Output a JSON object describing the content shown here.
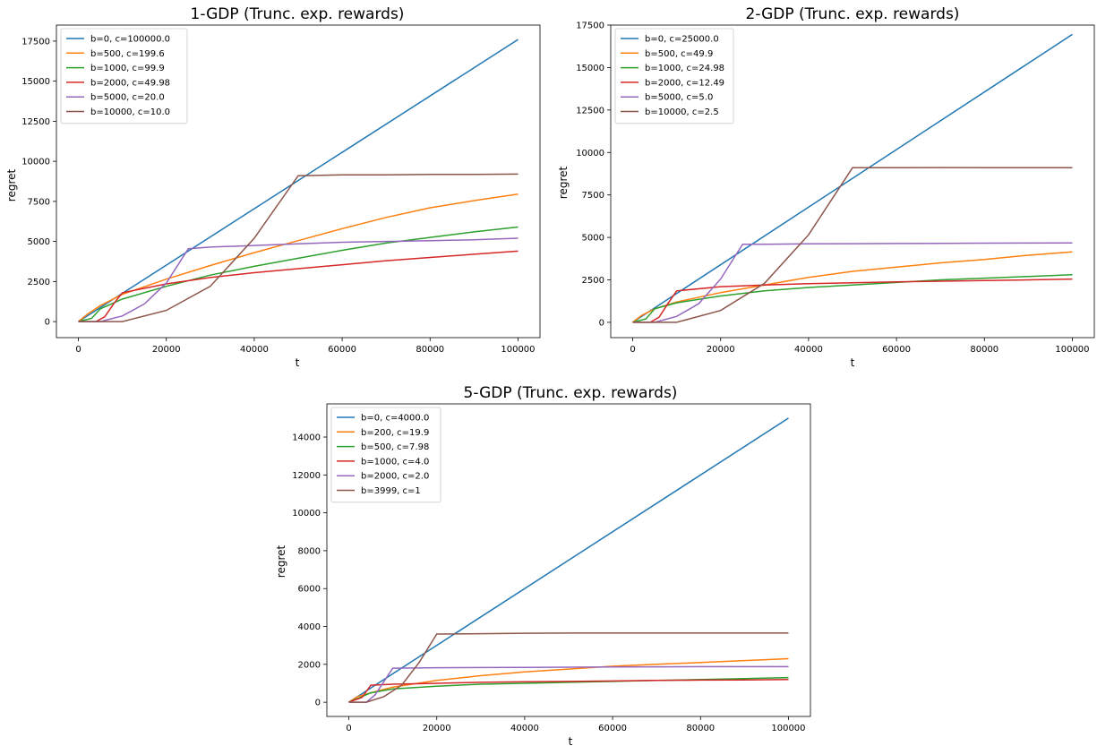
{
  "colors": {
    "series": [
      "#1f77b4",
      "#ff7f0e",
      "#2ca02c",
      "#d62728",
      "#9467bd",
      "#8c564b"
    ]
  },
  "chart_data": [
    {
      "type": "line",
      "title": "1-GDP (Trunc. exp. rewards)",
      "xlabel": "t",
      "ylabel": "regret",
      "xlim": [
        -5000,
        105000
      ],
      "ylim": [
        -1000,
        18500
      ],
      "xticks": [
        0,
        20000,
        40000,
        60000,
        80000,
        100000
      ],
      "xtick_labels": [
        "0",
        "20000",
        "40000",
        "60000",
        "80000",
        "100000"
      ],
      "yticks": [
        0,
        2500,
        5000,
        7500,
        10000,
        12500,
        15000,
        17500
      ],
      "ytick_labels": [
        "0",
        "2500",
        "5000",
        "7500",
        "10000",
        "12500",
        "15000",
        "17500"
      ],
      "legend_position": "top-left",
      "grid": false,
      "series": [
        {
          "name": "b=0, c=100000.0",
          "x": [
            0,
            100000
          ],
          "y": [
            0,
            17600
          ]
        },
        {
          "name": "b=500, c=199.6",
          "x": [
            0,
            2000,
            5000,
            10000,
            20000,
            30000,
            40000,
            50000,
            60000,
            70000,
            80000,
            90000,
            100000
          ],
          "y": [
            0,
            450,
            1000,
            1700,
            2650,
            3500,
            4300,
            5050,
            5800,
            6500,
            7100,
            7550,
            7950
          ]
        },
        {
          "name": "b=1000, c=99.9",
          "x": [
            0,
            3000,
            5000,
            10000,
            20000,
            30000,
            40000,
            50000,
            60000,
            70000,
            80000,
            90000,
            100000
          ],
          "y": [
            0,
            200,
            800,
            1400,
            2200,
            2900,
            3450,
            3950,
            4450,
            4900,
            5250,
            5600,
            5900
          ]
        },
        {
          "name": "b=2000, c=49.98",
          "x": [
            0,
            4000,
            6000,
            8000,
            10000,
            20000,
            30000,
            40000,
            50000,
            60000,
            70000,
            80000,
            90000,
            100000
          ],
          "y": [
            0,
            0,
            300,
            1100,
            1800,
            2350,
            2750,
            3050,
            3300,
            3550,
            3800,
            4000,
            4200,
            4400
          ]
        },
        {
          "name": "b=5000, c=20.0",
          "x": [
            0,
            5000,
            10000,
            15000,
            20000,
            25000,
            30000,
            40000,
            50000,
            60000,
            70000,
            80000,
            90000,
            100000
          ],
          "y": [
            0,
            0,
            350,
            1100,
            2400,
            4550,
            4650,
            4750,
            4850,
            4950,
            5000,
            5050,
            5100,
            5200
          ]
        },
        {
          "name": "b=10000, c=10.0",
          "x": [
            0,
            10000,
            20000,
            30000,
            40000,
            50000,
            60000,
            70000,
            80000,
            90000,
            100000
          ],
          "y": [
            0,
            0,
            700,
            2200,
            5200,
            9100,
            9150,
            9150,
            9180,
            9180,
            9200
          ]
        }
      ]
    },
    {
      "type": "line",
      "title": "2-GDP (Trunc. exp. rewards)",
      "xlabel": "t",
      "ylabel": "regret",
      "xlim": [
        -5000,
        105000
      ],
      "ylim": [
        -900,
        17500
      ],
      "xticks": [
        0,
        20000,
        40000,
        60000,
        80000,
        100000
      ],
      "xtick_labels": [
        "0",
        "20000",
        "40000",
        "60000",
        "80000",
        "100000"
      ],
      "yticks": [
        0,
        2500,
        5000,
        7500,
        10000,
        12500,
        15000,
        17500
      ],
      "ytick_labels": [
        "0",
        "2500",
        "5000",
        "7500",
        "10000",
        "12500",
        "15000",
        "17500"
      ],
      "legend_position": "top-left",
      "grid": false,
      "series": [
        {
          "name": "b=0, c=25000.0",
          "x": [
            0,
            100000
          ],
          "y": [
            0,
            16950
          ]
        },
        {
          "name": "b=500, c=49.9",
          "x": [
            0,
            2000,
            5000,
            10000,
            20000,
            30000,
            40000,
            50000,
            60000,
            70000,
            80000,
            90000,
            100000
          ],
          "y": [
            0,
            400,
            800,
            1200,
            1750,
            2200,
            2650,
            3000,
            3250,
            3500,
            3700,
            3950,
            4150
          ]
        },
        {
          "name": "b=1000, c=24.98",
          "x": [
            0,
            3000,
            5000,
            10000,
            20000,
            30000,
            40000,
            50000,
            60000,
            70000,
            80000,
            90000,
            100000
          ],
          "y": [
            0,
            200,
            800,
            1150,
            1550,
            1850,
            2050,
            2200,
            2350,
            2500,
            2600,
            2700,
            2800
          ]
        },
        {
          "name": "b=2000, c=12.49",
          "x": [
            0,
            4000,
            6000,
            8000,
            10000,
            20000,
            30000,
            40000,
            50000,
            60000,
            70000,
            80000,
            90000,
            100000
          ],
          "y": [
            0,
            0,
            300,
            1100,
            1850,
            2100,
            2200,
            2280,
            2330,
            2380,
            2420,
            2460,
            2500,
            2550
          ]
        },
        {
          "name": "b=5000, c=5.0",
          "x": [
            0,
            5000,
            10000,
            15000,
            20000,
            25000,
            30000,
            40000,
            50000,
            60000,
            70000,
            80000,
            90000,
            100000
          ],
          "y": [
            0,
            0,
            350,
            1100,
            2550,
            4600,
            4600,
            4620,
            4630,
            4640,
            4650,
            4660,
            4670,
            4680
          ]
        },
        {
          "name": "b=10000, c=2.5",
          "x": [
            0,
            10000,
            20000,
            30000,
            40000,
            50000,
            60000,
            70000,
            80000,
            90000,
            100000
          ],
          "y": [
            0,
            0,
            700,
            2300,
            5150,
            9100,
            9100,
            9110,
            9100,
            9100,
            9100
          ]
        }
      ]
    },
    {
      "type": "line",
      "title": "5-GDP (Trunc. exp. rewards)",
      "xlabel": "t",
      "ylabel": "regret",
      "xlim": [
        -5000,
        105000
      ],
      "ylim": [
        -750,
        15750
      ],
      "xticks": [
        0,
        20000,
        40000,
        60000,
        80000,
        100000
      ],
      "xtick_labels": [
        "0",
        "20000",
        "40000",
        "60000",
        "80000",
        "100000"
      ],
      "yticks": [
        0,
        2000,
        4000,
        6000,
        8000,
        10000,
        12000,
        14000
      ],
      "ytick_labels": [
        "0",
        "2000",
        "4000",
        "6000",
        "8000",
        "10000",
        "12000",
        "14000"
      ],
      "legend_position": "top-left",
      "grid": false,
      "series": [
        {
          "name": "b=0, c=4000.0",
          "x": [
            0,
            100000
          ],
          "y": [
            0,
            15000
          ]
        },
        {
          "name": "b=200, c=19.9",
          "x": [
            0,
            2000,
            5000,
            10000,
            20000,
            30000,
            40000,
            50000,
            60000,
            70000,
            80000,
            90000,
            100000
          ],
          "y": [
            0,
            300,
            500,
            800,
            1150,
            1400,
            1600,
            1750,
            1900,
            2000,
            2100,
            2200,
            2300
          ]
        },
        {
          "name": "b=500, c=7.98",
          "x": [
            0,
            2000,
            5000,
            10000,
            20000,
            30000,
            40000,
            50000,
            60000,
            70000,
            80000,
            90000,
            100000
          ],
          "y": [
            0,
            200,
            500,
            700,
            850,
            950,
            1000,
            1050,
            1100,
            1150,
            1200,
            1250,
            1300
          ]
        },
        {
          "name": "b=1000, c=4.0",
          "x": [
            0,
            3000,
            5000,
            10000,
            20000,
            30000,
            40000,
            50000,
            60000,
            70000,
            80000,
            90000,
            100000
          ],
          "y": [
            0,
            250,
            900,
            950,
            1000,
            1050,
            1080,
            1100,
            1120,
            1150,
            1170,
            1180,
            1200
          ]
        },
        {
          "name": "b=2000, c=2.0",
          "x": [
            0,
            4000,
            6000,
            10000,
            20000,
            30000,
            40000,
            50000,
            60000,
            70000,
            80000,
            90000,
            100000
          ],
          "y": [
            0,
            0,
            400,
            1800,
            1820,
            1830,
            1840,
            1850,
            1860,
            1870,
            1880,
            1880,
            1880
          ]
        },
        {
          "name": "b=3999, c=1",
          "x": [
            0,
            4000,
            8000,
            12000,
            16000,
            20000,
            30000,
            40000,
            50000,
            60000,
            70000,
            80000,
            90000,
            100000
          ],
          "y": [
            0,
            0,
            300,
            900,
            2100,
            3600,
            3620,
            3640,
            3650,
            3650,
            3650,
            3650,
            3650,
            3650
          ]
        }
      ]
    }
  ]
}
